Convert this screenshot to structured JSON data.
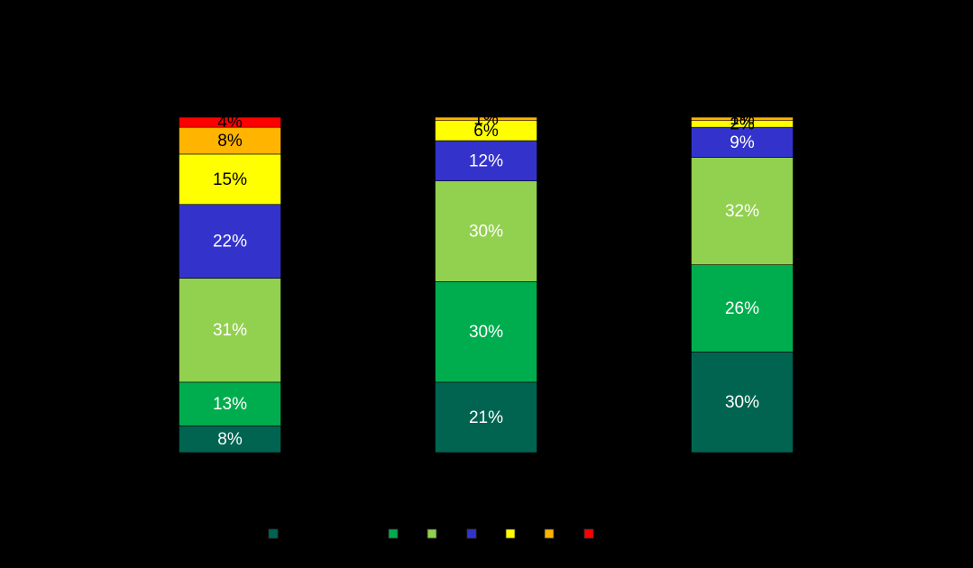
{
  "chart_data": {
    "type": "bar",
    "stacked": true,
    "percent_scale": true,
    "title": "",
    "xlabel": "",
    "ylabel": "",
    "ylim": [
      0,
      100
    ],
    "categories": [
      "",
      "",
      ""
    ],
    "series": [
      {
        "name": "",
        "color": "#006450",
        "values": [
          8,
          21,
          30
        ],
        "labels": [
          "8%",
          "21%",
          "30%"
        ],
        "label_color": "#ffffff"
      },
      {
        "name": "",
        "color": "#00AD4E",
        "values": [
          13,
          30,
          26
        ],
        "labels": [
          "13%",
          "30%",
          "26%"
        ],
        "label_color": "#ffffff"
      },
      {
        "name": "",
        "color": "#92D050",
        "values": [
          31,
          30,
          32
        ],
        "labels": [
          "31%",
          "30%",
          "32%"
        ],
        "label_color": "#ffffff"
      },
      {
        "name": "",
        "color": "#3333CC",
        "values": [
          22,
          12,
          9
        ],
        "labels": [
          "22%",
          "12%",
          "9%"
        ],
        "label_color": "#ffffff"
      },
      {
        "name": "",
        "color": "#FFFF00",
        "values": [
          15,
          6,
          2
        ],
        "labels": [
          "15%",
          "6%",
          "2%"
        ],
        "label_color": "#000000"
      },
      {
        "name": "",
        "color": "#FFB400",
        "values": [
          8,
          1,
          1
        ],
        "labels": [
          "8%",
          "1%",
          "1%"
        ],
        "label_color": "#000000"
      },
      {
        "name": "",
        "color": "#FF0000",
        "values": [
          4,
          0,
          0
        ],
        "labels": [
          "4%",
          "",
          ""
        ],
        "label_color": "#000000"
      }
    ],
    "grid": false,
    "legend_position": "bottom"
  }
}
